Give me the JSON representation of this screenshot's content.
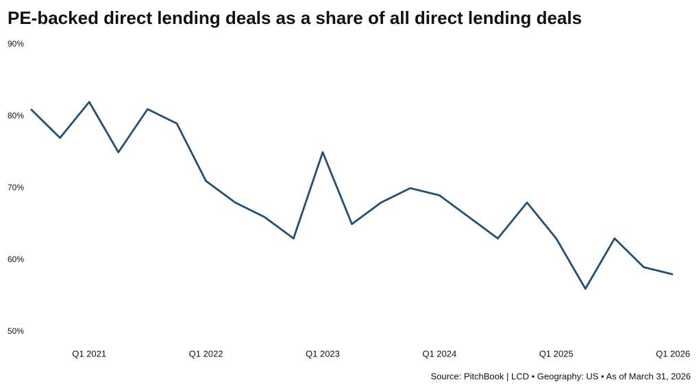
{
  "chart_data": {
    "type": "line",
    "title": "PE-backed direct lending deals as a share of all direct lending deals",
    "source": "Source: PitchBook | LCD • Geography: US • As of March 31, 2026",
    "categories": [
      null,
      null,
      "Q1 2021",
      null,
      null,
      null,
      "Q1 2022",
      null,
      null,
      null,
      "Q1 2023",
      null,
      null,
      null,
      "Q1 2024",
      null,
      null,
      null,
      "Q1 2025",
      null,
      null,
      null,
      "Q1 2026"
    ],
    "series": [
      {
        "color": "#1f4e79",
        "values": [
          81,
          77,
          82,
          75,
          81,
          79,
          71,
          68,
          66,
          63,
          75,
          65,
          68,
          70,
          69,
          66,
          63,
          68,
          63,
          56,
          63,
          59,
          58
        ]
      }
    ],
    "ylim": [
      50,
      90
    ],
    "yticks": [
      {
        "value": 50,
        "label": "50%"
      },
      {
        "value": 60,
        "label": "60%"
      },
      {
        "value": 70,
        "label": "70%"
      },
      {
        "value": 80,
        "label": "80%"
      },
      {
        "value": 90,
        "label": "90%"
      }
    ],
    "grid": false
  }
}
